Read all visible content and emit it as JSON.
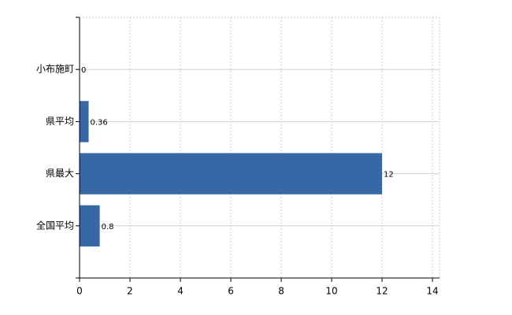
{
  "chart_data": {
    "type": "bar",
    "orientation": "horizontal",
    "categories": [
      "小布施町",
      "県平均",
      "県最大",
      "全国平均"
    ],
    "values": [
      0,
      0.36,
      12,
      0.8
    ],
    "color": "#3767a5",
    "xlim": [
      0,
      14.28
    ],
    "xticks": [
      0,
      2,
      4,
      6,
      8,
      10,
      12,
      14
    ],
    "grid": true
  }
}
